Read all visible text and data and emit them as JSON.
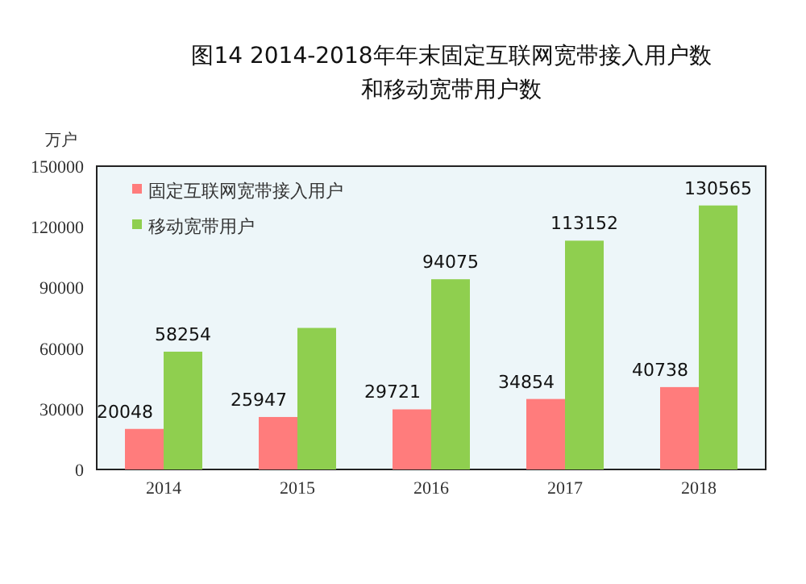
{
  "chart_data": {
    "type": "bar",
    "title": "图14 2014-2018年年末固定互联网宽带接入用户数",
    "subtitle": "和移动宽带用户数",
    "ylabel": "万户",
    "categories": [
      "2014",
      "2015",
      "2016",
      "2017",
      "2018"
    ],
    "series": [
      {
        "name": "固定互联网宽带接入用户",
        "color": "#ff7c7c",
        "values": [
          20048,
          25947,
          29721,
          34854,
          40738
        ],
        "value_labels": [
          "20048",
          "25947",
          "29721",
          "34854",
          "40738"
        ]
      },
      {
        "name": "移动宽带用户",
        "color": "#8fcf4f",
        "values": [
          58254,
          70000,
          94075,
          113152,
          130565
        ],
        "value_labels": [
          "58254",
          null,
          "94075",
          "113152",
          "130565"
        ]
      }
    ],
    "ylim": [
      0,
      150000
    ],
    "yticks": [
      0,
      30000,
      60000,
      90000,
      120000,
      150000
    ],
    "legend": "top left",
    "grid": false
  }
}
